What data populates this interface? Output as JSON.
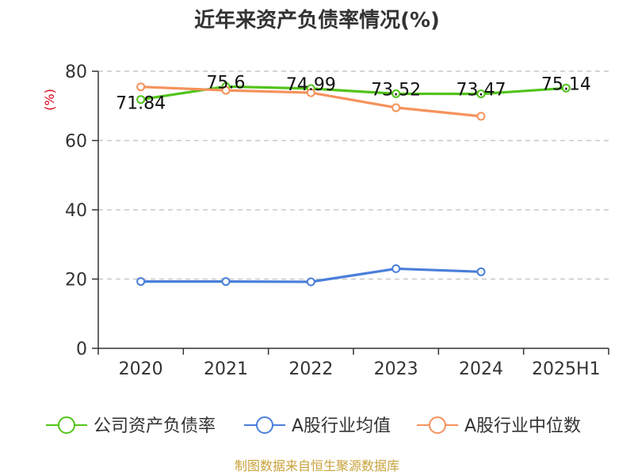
{
  "chart_data": {
    "type": "line",
    "title": "近年来资产负债率情况(%)",
    "ylabel": "(%)",
    "xlabel": "",
    "categories": [
      "2020",
      "2021",
      "2022",
      "2023",
      "2024",
      "2025H1"
    ],
    "ylim": [
      0,
      80
    ],
    "yticks": [
      0,
      20,
      40,
      60,
      80
    ],
    "grid": true,
    "legend_position": "bottom",
    "series": [
      {
        "name": "公司资产负债率",
        "color": "#52c41a",
        "values": [
          71.84,
          75.6,
          74.99,
          73.52,
          73.47,
          75.14
        ],
        "labels": [
          "71.84",
          "75.6",
          "74.99",
          "73.52",
          "73.47",
          "75.14"
        ]
      },
      {
        "name": "A股行业均值",
        "color": "#4a7fd9",
        "values": [
          19.3,
          19.3,
          19.2,
          23.0,
          22.1,
          null
        ]
      },
      {
        "name": "A股行业中位数",
        "color": "#f5925c",
        "values": [
          75.5,
          74.5,
          73.8,
          69.5,
          67.0,
          null
        ]
      }
    ],
    "source": "制图数据来自恒生聚源数据库"
  }
}
